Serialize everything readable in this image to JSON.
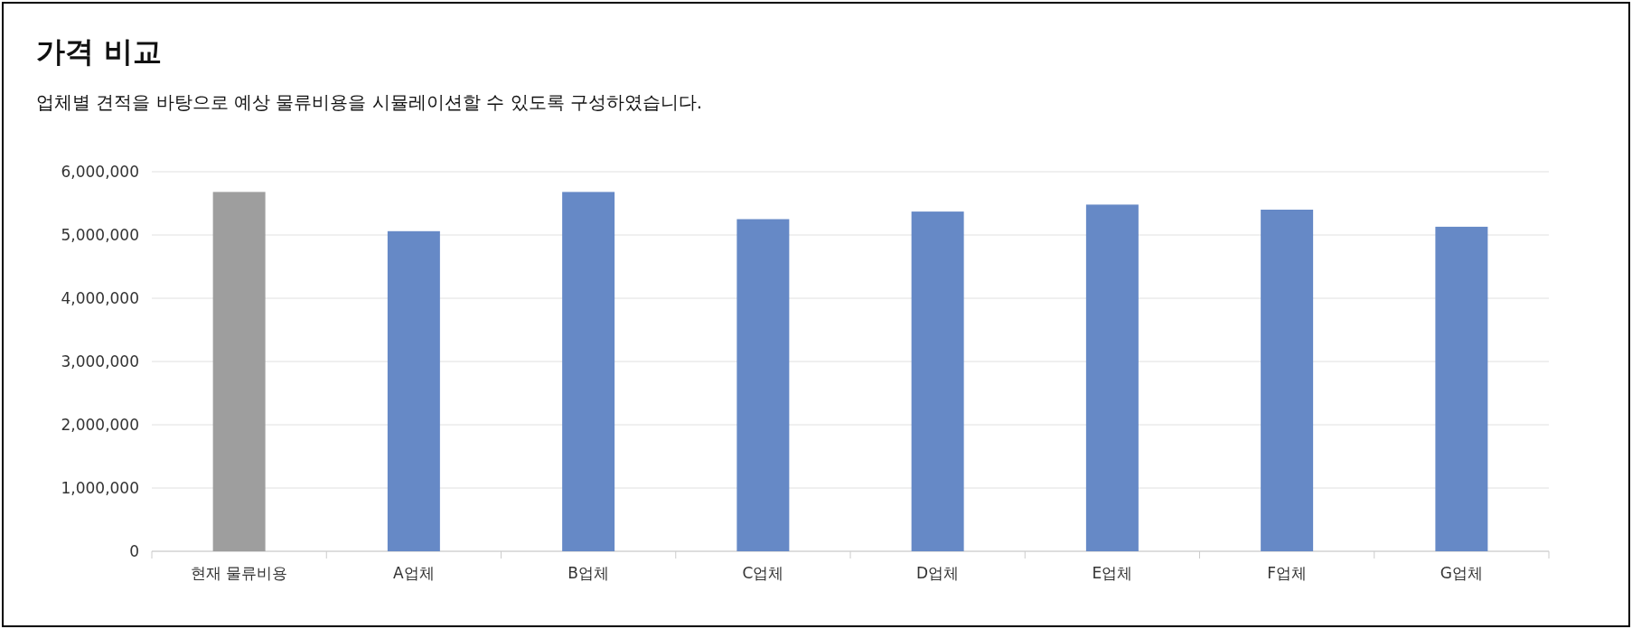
{
  "chart_data": {
    "type": "bar",
    "title": "가격 비교",
    "subtitle": "업체별 견적을 바탕으로 예상 물류비용을 시뮬레이션할 수 있도록 구성하였습니다.",
    "categories": [
      "현재 물류비용",
      "A업체",
      "B업체",
      "C업체",
      "D업체",
      "E업체",
      "F업체",
      "G업체"
    ],
    "values": [
      5680000,
      5060000,
      5680000,
      5250000,
      5370000,
      5480000,
      5400000,
      5130000
    ],
    "colors": [
      "#9e9e9e",
      "#6689c6",
      "#6689c6",
      "#6689c6",
      "#6689c6",
      "#6689c6",
      "#6689c6",
      "#6689c6"
    ],
    "ylim": [
      0,
      6000000
    ],
    "yticks": [
      {
        "value": 0,
        "label": "0"
      },
      {
        "value": 1000000,
        "label": "1,000,000"
      },
      {
        "value": 2000000,
        "label": "2,000,000"
      },
      {
        "value": 3000000,
        "label": "3,000,000"
      },
      {
        "value": 4000000,
        "label": "4,000,000"
      },
      {
        "value": 5000000,
        "label": "5,000,000"
      },
      {
        "value": 6000000,
        "label": "6,000,000"
      }
    ],
    "grid": "y"
  }
}
